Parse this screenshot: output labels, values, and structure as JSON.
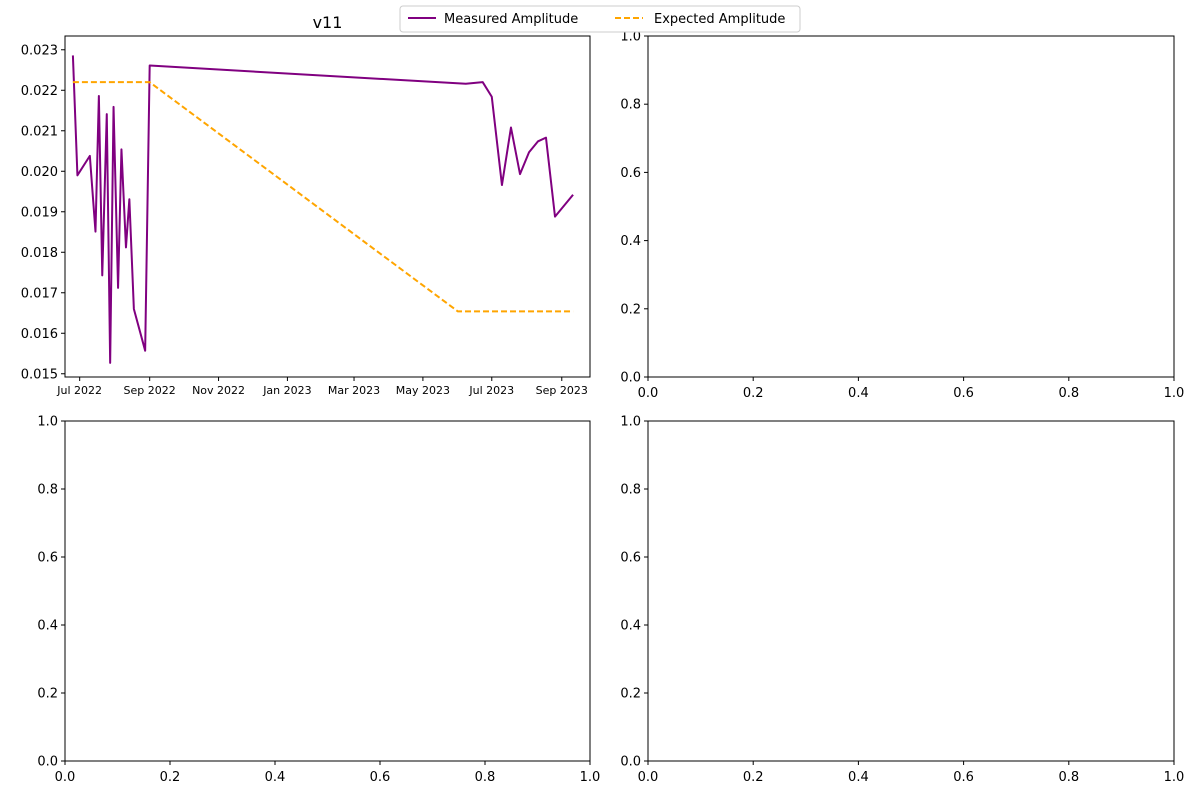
{
  "figure": {
    "background": "#ffffff"
  },
  "legend": {
    "placement": "top-center",
    "entries": [
      {
        "label": "Measured Amplitude",
        "color": "#800080",
        "style": "solid"
      },
      {
        "label": "Expected Amplitude",
        "color": "#ffa500",
        "style": "dashed"
      }
    ]
  },
  "chart_data": [
    {
      "type": "line",
      "title": "v11",
      "xlabel": "",
      "ylabel": "",
      "x_type": "date",
      "xlim": [
        "2022-06-18",
        "2023-09-26"
      ],
      "ylim": [
        0.01492,
        0.02334
      ],
      "x_ticks": [
        {
          "date": "2022-07-01",
          "label": "Jul 2022"
        },
        {
          "date": "2022-09-01",
          "label": "Sep 2022"
        },
        {
          "date": "2022-11-01",
          "label": "Nov 2022"
        },
        {
          "date": "2023-01-01",
          "label": "Jan 2023"
        },
        {
          "date": "2023-03-01",
          "label": "Mar 2023"
        },
        {
          "date": "2023-05-01",
          "label": "May 2023"
        },
        {
          "date": "2023-07-01",
          "label": "Jul 2023"
        },
        {
          "date": "2023-09-01",
          "label": "Sep 2023"
        }
      ],
      "y_ticks": [
        {
          "value": 0.015,
          "label": "0.015"
        },
        {
          "value": 0.016,
          "label": "0.016"
        },
        {
          "value": 0.017,
          "label": "0.017"
        },
        {
          "value": 0.018,
          "label": "0.018"
        },
        {
          "value": 0.019,
          "label": "0.019"
        },
        {
          "value": 0.02,
          "label": "0.020"
        },
        {
          "value": 0.021,
          "label": "0.021"
        },
        {
          "value": 0.022,
          "label": "0.022"
        },
        {
          "value": 0.023,
          "label": "0.023"
        }
      ],
      "grid": false,
      "series": [
        {
          "name": "Measured Amplitude",
          "color": "#800080",
          "style": "solid",
          "points": [
            [
              "2022-06-25",
              0.02286
            ],
            [
              "2022-06-29",
              0.0199
            ],
            [
              "2022-07-10",
              0.02038
            ],
            [
              "2022-07-15",
              0.01851
            ],
            [
              "2022-07-18",
              0.02186
            ],
            [
              "2022-07-21",
              0.01743
            ],
            [
              "2022-07-25",
              0.02141
            ],
            [
              "2022-07-28",
              0.01527
            ],
            [
              "2022-07-31",
              0.02159
            ],
            [
              "2022-08-04",
              0.01712
            ],
            [
              "2022-08-07",
              0.02054
            ],
            [
              "2022-08-11",
              0.01812
            ],
            [
              "2022-08-14",
              0.01931
            ],
            [
              "2022-08-18",
              0.0166
            ],
            [
              "2022-08-28",
              0.01557
            ],
            [
              "2022-09-01",
              0.02261
            ],
            [
              "2023-06-08",
              0.02216
            ],
            [
              "2023-06-23",
              0.0222
            ],
            [
              "2023-07-01",
              0.02184
            ],
            [
              "2023-07-10",
              0.01966
            ],
            [
              "2023-07-18",
              0.02108
            ],
            [
              "2023-07-26",
              0.01993
            ],
            [
              "2023-08-03",
              0.02047
            ],
            [
              "2023-08-11",
              0.02074
            ],
            [
              "2023-08-18",
              0.02083
            ],
            [
              "2023-08-26",
              0.01888
            ],
            [
              "2023-09-11",
              0.01942
            ]
          ]
        },
        {
          "name": "Expected Amplitude",
          "color": "#ffa500",
          "style": "dashed",
          "points": [
            [
              "2022-06-25",
              0.0222
            ],
            [
              "2022-09-01",
              0.0222
            ],
            [
              "2023-06-01",
              0.01654
            ],
            [
              "2023-09-11",
              0.01654
            ]
          ]
        }
      ]
    },
    {
      "type": "line",
      "title": "",
      "xlabel": "",
      "ylabel": "",
      "xlim": [
        0,
        1
      ],
      "ylim": [
        0,
        1
      ],
      "x_ticks": [
        "0.0",
        "0.2",
        "0.4",
        "0.6",
        "0.8",
        "1.0"
      ],
      "y_ticks": [
        "0.0",
        "0.2",
        "0.4",
        "0.6",
        "0.8",
        "1.0"
      ],
      "series": []
    },
    {
      "type": "line",
      "title": "",
      "xlabel": "",
      "ylabel": "",
      "xlim": [
        0,
        1
      ],
      "ylim": [
        0,
        1
      ],
      "x_ticks": [
        "0.0",
        "0.2",
        "0.4",
        "0.6",
        "0.8",
        "1.0"
      ],
      "y_ticks": [
        "0.0",
        "0.2",
        "0.4",
        "0.6",
        "0.8",
        "1.0"
      ],
      "series": []
    },
    {
      "type": "line",
      "title": "",
      "xlabel": "",
      "ylabel": "",
      "xlim": [
        0,
        1
      ],
      "ylim": [
        0,
        1
      ],
      "x_ticks": [
        "0.0",
        "0.2",
        "0.4",
        "0.6",
        "0.8",
        "1.0"
      ],
      "y_ticks": [
        "0.0",
        "0.2",
        "0.4",
        "0.6",
        "0.8",
        "1.0"
      ],
      "series": []
    }
  ]
}
